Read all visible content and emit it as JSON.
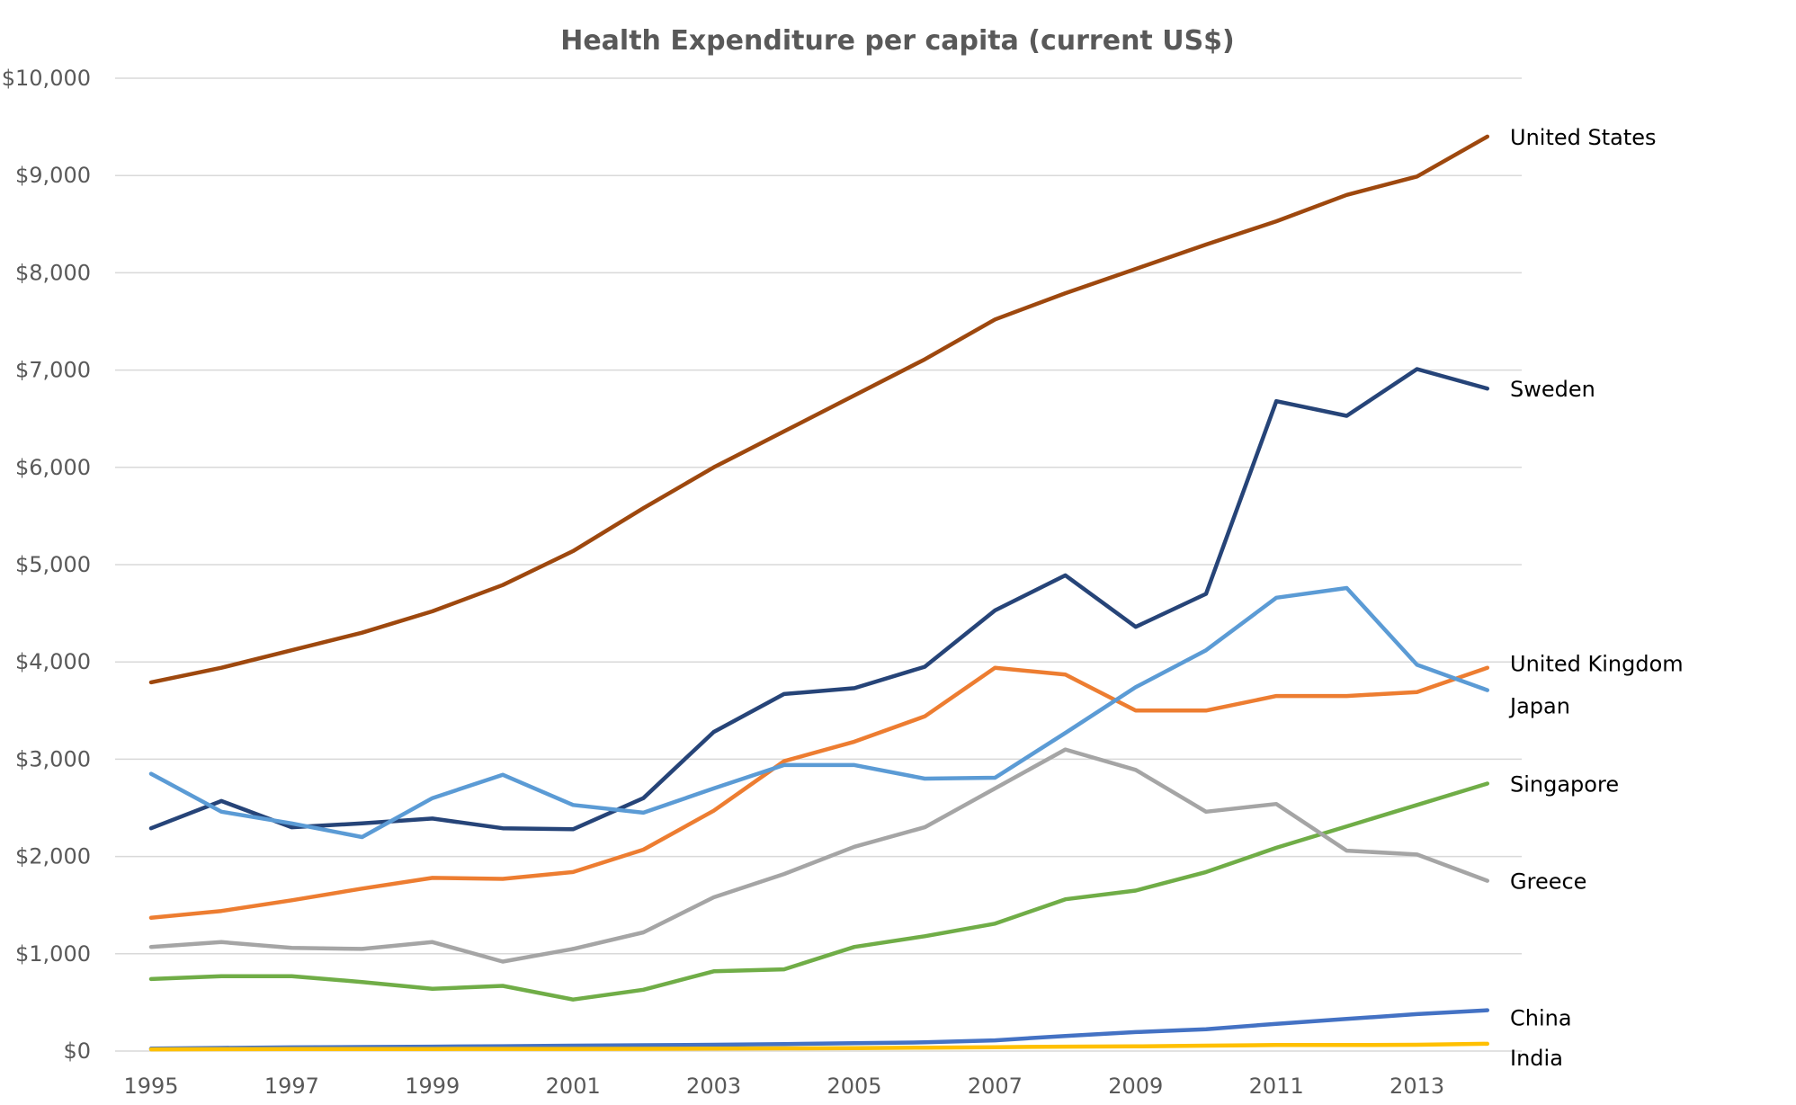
{
  "chart_data": {
    "type": "line",
    "title": "Health Expenditure per capita (current US$)",
    "xlabel": "",
    "ylabel": "",
    "x": [
      1995,
      1996,
      1997,
      1998,
      1999,
      2000,
      2001,
      2002,
      2003,
      2004,
      2005,
      2006,
      2007,
      2008,
      2009,
      2010,
      2011,
      2012,
      2013,
      2014
    ],
    "x_tick_labels": [
      "1995",
      "1997",
      "1999",
      "2001",
      "2003",
      "2005",
      "2007",
      "2009",
      "2011",
      "2013"
    ],
    "ylim": [
      0,
      10000
    ],
    "y_tick_labels": [
      "$0",
      "$1,000",
      "$2,000",
      "$3,000",
      "$4,000",
      "$5,000",
      "$6,000",
      "$7,000",
      "$8,000",
      "$9,000",
      "$10,000"
    ],
    "grid": true,
    "legend": "inline labels at line ends",
    "series": [
      {
        "name": "United States",
        "color": "#9e480e",
        "values": [
          3790,
          3940,
          4120,
          4300,
          4520,
          4790,
          5140,
          5580,
          6000,
          6370,
          6740,
          7110,
          7520,
          7790,
          8040,
          8290,
          8530,
          8800,
          8990,
          9400
        ]
      },
      {
        "name": "Sweden",
        "color": "#264478",
        "values": [
          2290,
          2570,
          2300,
          2340,
          2390,
          2290,
          2280,
          2600,
          3280,
          3670,
          3730,
          3950,
          4530,
          4890,
          4360,
          4700,
          6680,
          6530,
          7010,
          6810
        ]
      },
      {
        "name": "United Kingdom",
        "color": "#ed7d31",
        "values": [
          1370,
          1440,
          1550,
          1670,
          1780,
          1770,
          1840,
          2070,
          2470,
          2980,
          3180,
          3440,
          3940,
          3870,
          3500,
          3500,
          3650,
          3650,
          3690,
          3940
        ]
      },
      {
        "name": "Japan",
        "color": "#5b9bd5",
        "values": [
          2850,
          2460,
          2340,
          2200,
          2600,
          2840,
          2530,
          2450,
          2700,
          2940,
          2940,
          2800,
          2810,
          3270,
          3740,
          4120,
          4660,
          4760,
          3970,
          3710
        ]
      },
      {
        "name": "Singapore",
        "color": "#70ad47",
        "values": [
          740,
          770,
          770,
          710,
          640,
          670,
          530,
          630,
          820,
          840,
          1070,
          1180,
          1310,
          1560,
          1650,
          1840,
          2090,
          2310,
          2530,
          2750
        ]
      },
      {
        "name": "Greece",
        "color": "#a5a5a5",
        "values": [
          1070,
          1120,
          1060,
          1050,
          1120,
          920,
          1050,
          1220,
          1580,
          1820,
          2100,
          2300,
          2700,
          3100,
          2890,
          2460,
          2540,
          2060,
          2020,
          1750
        ]
      },
      {
        "name": "China",
        "color": "#4472c4",
        "values": [
          25,
          32,
          38,
          42,
          45,
          50,
          55,
          60,
          65,
          72,
          80,
          90,
          110,
          155,
          195,
          225,
          280,
          330,
          380,
          420
        ]
      },
      {
        "name": "India",
        "color": "#ffc000",
        "values": [
          18,
          19,
          20,
          20,
          21,
          22,
          22,
          23,
          25,
          28,
          30,
          35,
          40,
          45,
          48,
          55,
          62,
          62,
          65,
          75
        ]
      }
    ]
  }
}
